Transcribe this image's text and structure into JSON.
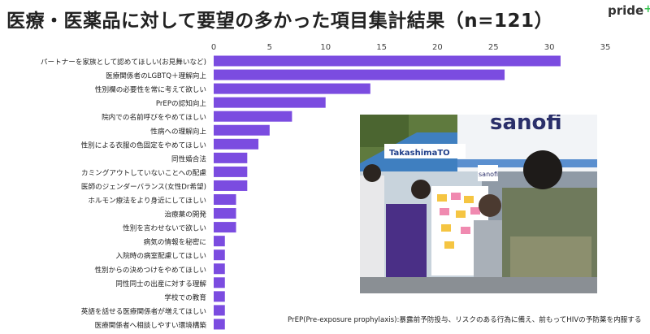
{
  "title": "医療・医薬品に対して要望の多かった項目集計結果（n=121）",
  "logo": {
    "text": "pride",
    "plus": "+"
  },
  "colors": {
    "bar": "#7b4ce0",
    "axis_text": "#444444",
    "label_text": "#222222"
  },
  "footnote": "PrEP(Pre-exposure prophylaxis):暴露前予防投与、リスクのある行為に備え、前もってHIVの予防薬を内服する",
  "photo": {
    "description_icon": "event-photo",
    "sign_texts": [
      "sanofi",
      "TakashimaTO",
      "sanofi"
    ]
  },
  "chart_data": {
    "type": "bar",
    "orientation": "horizontal",
    "categories": [
      "パートナーを家族として認めてほしい(お見舞いなど)",
      "医療関係者のLGBTQ＋理解向上",
      "性別欄の必要性を常に考えて欲しい",
      "PrEPの認知向上",
      "院内での名前呼びをやめてほしい",
      "性病への理解向上",
      "性別による衣服の色固定をやめてほしい",
      "同性婚合法",
      "カミングアウトしていないことへの配慮",
      "医師のジェンダーバランス(女性Dr希望)",
      "ホルモン療法をより身近にしてほしい",
      "治療薬の開発",
      "性別を言わせないで欲しい",
      "病気の情報を秘密に",
      "入院時の病室配慮してほしい",
      "性別からの決めつけをやめてほしい",
      "同性同士の出産に対する理解",
      "学校での教育",
      "英語を話せる医療関係者が増えてほしい",
      "医療関係者へ相談しやすい環境構築"
    ],
    "values": [
      31,
      26,
      14,
      10,
      7,
      5,
      4,
      3,
      3,
      3,
      2,
      2,
      2,
      1,
      1,
      1,
      1,
      1,
      1,
      1
    ],
    "xlim": [
      0,
      35
    ],
    "xticks": [
      0,
      5,
      10,
      15,
      20,
      25,
      30,
      35
    ],
    "tick_position": "top",
    "grid": false,
    "xlabel": "",
    "ylabel": ""
  }
}
